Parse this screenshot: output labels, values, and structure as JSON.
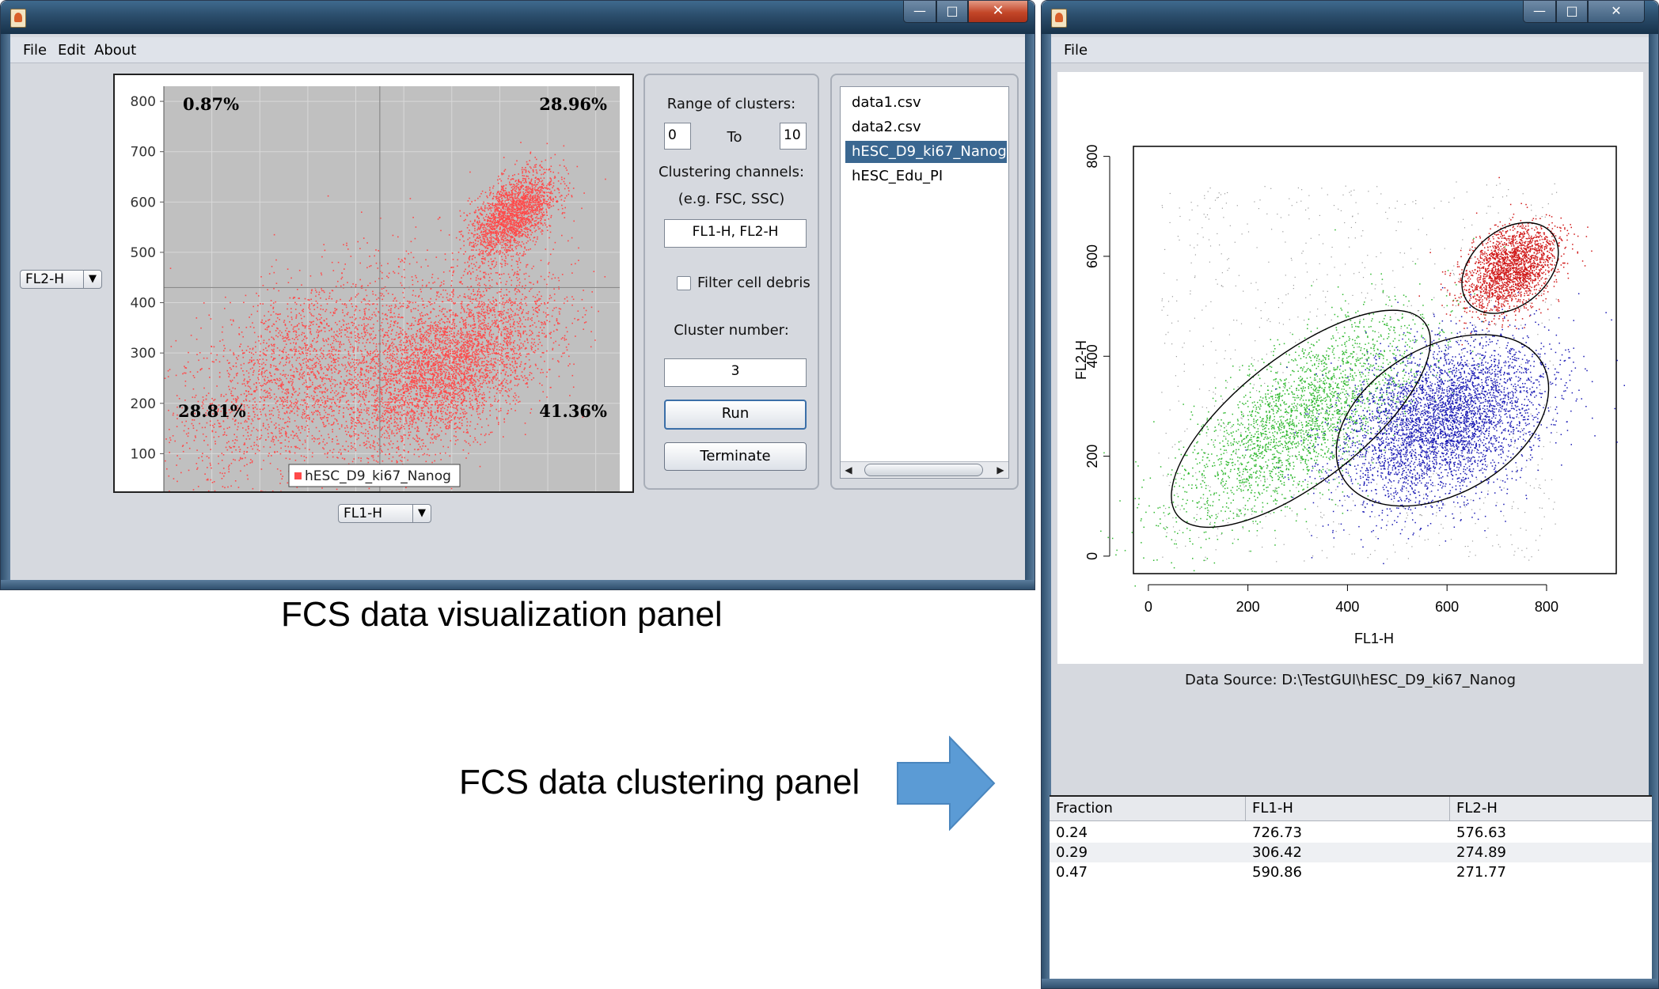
{
  "left_window": {
    "menu": [
      "File",
      "Edit",
      "About"
    ],
    "y_channel": "FL2-H",
    "x_channel": "FL1-H",
    "controls": {
      "range_label": "Range of clusters:",
      "range_from": "0",
      "range_to_label": "To",
      "range_to": "10",
      "channels_label": "Clustering channels:",
      "channels_hint": "(e.g. FSC, SSC)",
      "channels_value": "FL1-H, FL2-H",
      "filter_label": "Filter cell debris",
      "filter_checked": false,
      "cluster_number_label": "Cluster number:",
      "cluster_number": "3",
      "run_label": "Run",
      "terminate_label": "Terminate"
    },
    "files": [
      "data1.csv",
      "data2.csv",
      "hESC_D9_ki67_Nanog",
      "hESC_Edu_PI"
    ],
    "selected_file": "hESC_D9_ki67_Nanog",
    "scroll_left": "◀",
    "scroll_right": "▶"
  },
  "right_window": {
    "menu": [
      "File"
    ],
    "data_source": "Data Source: D:\\TestGUI\\hESC_D9_ki67_Nanog",
    "table": {
      "headers": [
        "Fraction",
        "FL1-H",
        "FL2-H"
      ],
      "rows": [
        [
          "0.24",
          "726.73",
          "576.63"
        ],
        [
          "0.29",
          "306.42",
          "274.89"
        ],
        [
          "0.47",
          "590.86",
          "271.77"
        ]
      ]
    }
  },
  "window_controls": {
    "minimize": "—",
    "maximize": "□",
    "close": "✕"
  },
  "captions": {
    "visualization": "FCS data visualization panel",
    "clustering": "FCS data clustering panel"
  },
  "colors": {
    "title_bar": "#2b4d6b",
    "scatter_red": "#ff4a4a",
    "cluster_green": "#2fb82f",
    "cluster_blue": "#1a1ab4",
    "cluster_red": "#d01818",
    "arrow_blue": "#5b9bd5",
    "selection": "#3a6791"
  },
  "chart_data": [
    {
      "type": "scatter",
      "xlabel": "",
      "ylabel": "",
      "xlim": [
        0,
        950
      ],
      "ylim": [
        0,
        830
      ],
      "x_ticks": [
        "0",
        "100",
        "200",
        "300",
        "400",
        "500",
        "600",
        "700",
        "800",
        "900"
      ],
      "y_ticks": [
        "0",
        "100",
        "200",
        "300",
        "400",
        "500",
        "600",
        "700",
        "800"
      ],
      "gates": {
        "x": 450,
        "y": 430
      },
      "quadrant_percentages": {
        "top_left": "0.87%",
        "top_right": "28.96%",
        "bottom_left": "28.81%",
        "bottom_right": "41.36%"
      },
      "legend": "hESC_D9_ki67_Nanog",
      "grid": true,
      "populations": [
        {
          "center": [
            290,
            260
          ],
          "spread": [
            140,
            110
          ],
          "fraction": 0.29
        },
        {
          "center": [
            590,
            270
          ],
          "spread": [
            110,
            85
          ],
          "fraction": 0.47
        },
        {
          "center": [
            726,
            575
          ],
          "spread": [
            45,
            45
          ],
          "fraction": 0.24
        }
      ]
    },
    {
      "type": "scatter",
      "xlabel": "FL1-H",
      "ylabel": "FL2-H",
      "xlim": [
        -30,
        940
      ],
      "ylim": [
        -35,
        820
      ],
      "x_ticks": [
        "0",
        "200",
        "400",
        "600",
        "800"
      ],
      "y_ticks": [
        "0",
        "200",
        "400",
        "600",
        "800"
      ],
      "grid": false,
      "clusters": [
        {
          "color": "green",
          "fraction": 0.29,
          "mean": [
            306.42,
            274.89
          ]
        },
        {
          "color": "blue",
          "fraction": 0.47,
          "mean": [
            590.86,
            271.77
          ]
        },
        {
          "color": "red",
          "fraction": 0.24,
          "mean": [
            726.73,
            576.63
          ]
        }
      ]
    }
  ]
}
